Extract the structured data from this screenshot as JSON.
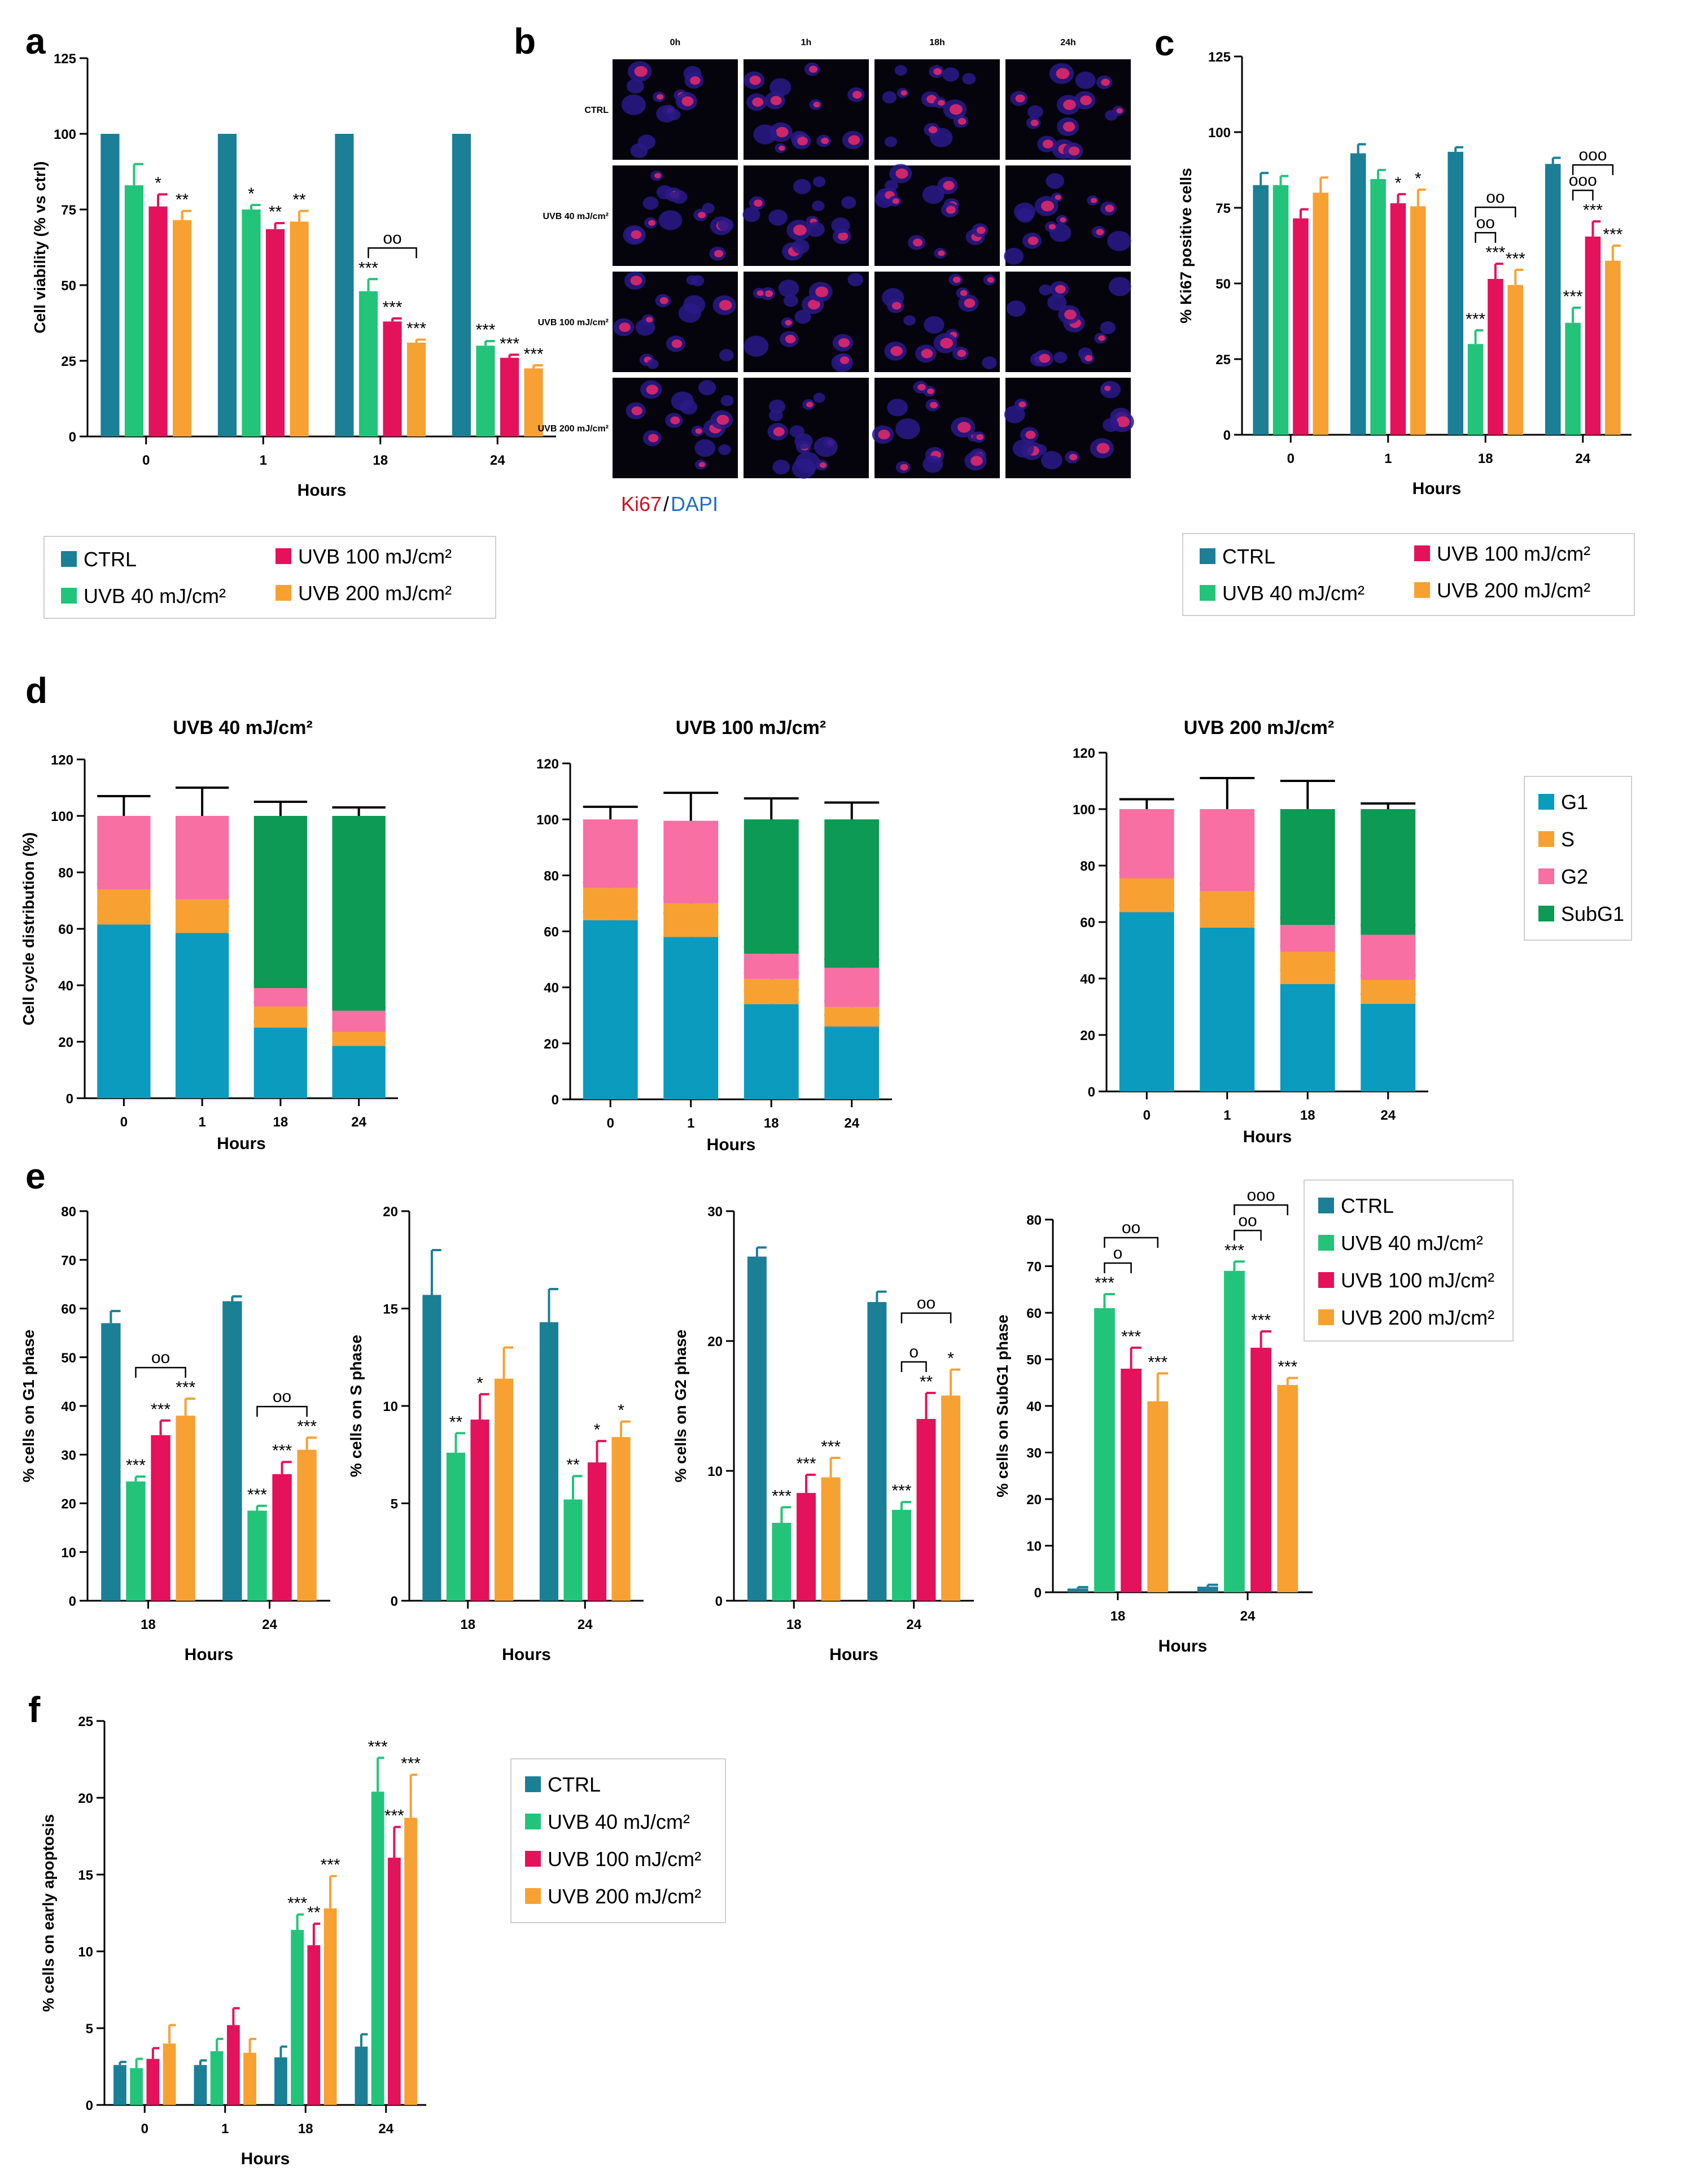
{
  "colors": {
    "ctrl": "#1b7f96",
    "uvb40": "#22c47a",
    "uvb100": "#e3125a",
    "uvb200": "#f7a133",
    "g1": "#0a9bbf",
    "s": "#f7a133",
    "g2": "#f76fa3",
    "subg1": "#0c9a54"
  },
  "legend_treatment": [
    "CTRL",
    "UVB 40 mJ/cm²",
    "UVB 100 mJ/cm²",
    "UVB 200 mJ/cm²"
  ],
  "legend_cycle": [
    "G1",
    "S",
    "G2",
    "SubG1"
  ],
  "panel_b": {
    "letter": "b",
    "columns": [
      "0h",
      "1h",
      "18h",
      "24h"
    ],
    "rows": [
      "CTRL",
      "UVB 40 mJ/cm²",
      "UVB 100 mJ/cm²",
      "UVB 200 mJ/cm²"
    ],
    "stain_ki67": "Ki67",
    "stain_sep": "/",
    "stain_dapi": "DAPI"
  },
  "chart_data": [
    {
      "id": "a",
      "letter": "a",
      "type": "bar",
      "title": "",
      "xlabel": "Hours",
      "ylabel": "Cell viability (% vs ctrl)",
      "categories": [
        "0",
        "1",
        "18",
        "24"
      ],
      "ylim": [
        0,
        125
      ],
      "yticks": [
        0,
        25,
        50,
        75,
        100,
        125
      ],
      "series": [
        {
          "name": "CTRL",
          "values": [
            100,
            100,
            100,
            100
          ],
          "err": [
            0,
            0,
            0,
            0
          ],
          "sig": [
            "",
            "",
            "",
            ""
          ]
        },
        {
          "name": "UVB 40 mJ/cm²",
          "values": [
            83,
            75,
            48,
            30
          ],
          "err": [
            7,
            1.5,
            4,
            1.5
          ],
          "sig": [
            "",
            "*",
            "***",
            "***"
          ]
        },
        {
          "name": "UVB 100 mJ/cm²",
          "values": [
            76,
            68.5,
            38,
            26
          ],
          "err": [
            4,
            2,
            1,
            1
          ],
          "sig": [
            "*",
            "**",
            "***",
            "***"
          ]
        },
        {
          "name": "UVB 200 mJ/cm²",
          "values": [
            71.5,
            71,
            31,
            22.5
          ],
          "err": [
            3,
            3.5,
            1,
            1
          ],
          "sig": [
            "**",
            "**",
            "***",
            "***"
          ]
        }
      ],
      "brackets": [
        {
          "cat": 2,
          "from": 1,
          "to": 3,
          "label": "οο"
        }
      ]
    },
    {
      "id": "c",
      "letter": "c",
      "type": "bar",
      "title": "",
      "xlabel": "Hours",
      "ylabel": "% Ki67 positive cells",
      "categories": [
        "0",
        "1",
        "18",
        "24"
      ],
      "ylim": [
        0,
        125
      ],
      "yticks": [
        0,
        25,
        50,
        75,
        100,
        125
      ],
      "series": [
        {
          "name": "CTRL",
          "values": [
            82.5,
            93,
            93.5,
            89.5
          ],
          "err": [
            4,
            3,
            1.5,
            2
          ],
          "sig": [
            "",
            "",
            "",
            ""
          ]
        },
        {
          "name": "UVB 40 mJ/cm²",
          "values": [
            82.5,
            84.5,
            30,
            37
          ],
          "err": [
            3,
            3,
            4.5,
            5
          ],
          "sig": [
            "",
            "",
            "***",
            "***"
          ]
        },
        {
          "name": "UVB 100 mJ/cm²",
          "values": [
            71.5,
            76.5,
            51.5,
            65.5
          ],
          "err": [
            3,
            3,
            5,
            5
          ],
          "sig": [
            "",
            "*",
            "***",
            "***"
          ]
        },
        {
          "name": "UVB 200 mJ/cm²",
          "values": [
            80,
            75.5,
            49.5,
            57.5
          ],
          "err": [
            5,
            5.5,
            5,
            5
          ],
          "sig": [
            "",
            "*",
            "***",
            "***"
          ]
        }
      ],
      "brackets": [
        {
          "cat": 2,
          "from": 1,
          "to": 2,
          "label": "οο",
          "level": 0
        },
        {
          "cat": 2,
          "from": 1,
          "to": 3,
          "label": "οο",
          "level": 1
        },
        {
          "cat": 3,
          "from": 1,
          "to": 2,
          "label": "οοο",
          "level": 0
        },
        {
          "cat": 3,
          "from": 1,
          "to": 3,
          "label": "οοο",
          "level": 1
        }
      ]
    },
    {
      "id": "d1",
      "letter": "d",
      "type": "bar",
      "stacked": true,
      "title": "UVB 40 mJ/cm²",
      "xlabel": "Hours",
      "ylabel": "Cell cycle distribution (%)",
      "categories": [
        "0",
        "1",
        "18",
        "24"
      ],
      "ylim": [
        0,
        120
      ],
      "yticks": [
        0,
        20,
        40,
        60,
        80,
        100,
        120
      ],
      "series": [
        {
          "name": "G1",
          "values": [
            61.5,
            58.5,
            25,
            18.5
          ],
          "err": [
            6,
            9.5,
            2,
            2.5
          ]
        },
        {
          "name": "S",
          "values": [
            12.5,
            12,
            7.5,
            5
          ],
          "err": [
            2,
            1,
            1.5,
            1.5
          ]
        },
        {
          "name": "G2",
          "values": [
            26,
            29.5,
            6.5,
            7.5
          ],
          "err": [
            7,
            10,
            2,
            1
          ]
        },
        {
          "name": "SubG1",
          "values": [
            0,
            0,
            61,
            69
          ],
          "err": [
            0,
            0,
            5,
            3
          ]
        }
      ]
    },
    {
      "id": "d2",
      "type": "bar",
      "stacked": true,
      "title": "UVB 100 mJ/cm²",
      "xlabel": "Hours",
      "ylabel": "",
      "categories": [
        "0",
        "1",
        "18",
        "24"
      ],
      "ylim": [
        0,
        120
      ],
      "yticks": [
        0,
        20,
        40,
        60,
        80,
        100,
        120
      ],
      "series": [
        {
          "name": "G1",
          "values": [
            64,
            58,
            34,
            26
          ],
          "err": [
            3,
            8.5,
            5,
            4
          ]
        },
        {
          "name": "S",
          "values": [
            11.5,
            12,
            9,
            7
          ],
          "err": [
            2,
            2,
            2,
            2
          ]
        },
        {
          "name": "G2",
          "values": [
            24.5,
            29.5,
            9,
            14
          ],
          "err": [
            4.5,
            10,
            2.5,
            3
          ]
        },
        {
          "name": "SubG1",
          "values": [
            0,
            0,
            48,
            53
          ],
          "err": [
            0,
            0,
            7.5,
            6
          ]
        }
      ]
    },
    {
      "id": "d3",
      "type": "bar",
      "stacked": true,
      "title": "UVB 200 mJ/cm²",
      "xlabel": "Hours",
      "ylabel": "",
      "categories": [
        "0",
        "1",
        "18",
        "24"
      ],
      "ylim": [
        0,
        120
      ],
      "yticks": [
        0,
        20,
        40,
        60,
        80,
        100,
        120
      ],
      "series": [
        {
          "name": "G1",
          "values": [
            63.5,
            58,
            38,
            31
          ],
          "err": [
            2.5,
            10,
            5,
            3.5
          ]
        },
        {
          "name": "S",
          "values": [
            12,
            13,
            11.5,
            8.5
          ],
          "err": [
            2,
            2.5,
            2,
            1.5
          ]
        },
        {
          "name": "G2",
          "values": [
            24.5,
            29,
            9.5,
            16
          ],
          "err": [
            3.5,
            11,
            2.5,
            3.5
          ]
        },
        {
          "name": "SubG1",
          "values": [
            0,
            0,
            41,
            44.5
          ],
          "err": [
            0,
            0,
            10,
            2
          ]
        }
      ]
    },
    {
      "id": "e1",
      "letter": "e",
      "type": "bar",
      "title": "",
      "xlabel": "Hours",
      "ylabel": "% cells on G1 phase",
      "categories": [
        "18",
        "24"
      ],
      "ylim": [
        0,
        80
      ],
      "yticks": [
        0,
        10,
        20,
        30,
        40,
        50,
        60,
        70,
        80
      ],
      "series": [
        {
          "name": "CTRL",
          "values": [
            57,
            61.5
          ],
          "err": [
            2.5,
            1
          ],
          "sig": [
            "",
            ""
          ]
        },
        {
          "name": "UVB 40 mJ/cm²",
          "values": [
            24.5,
            18.5
          ],
          "err": [
            1,
            1
          ],
          "sig": [
            "***",
            "***"
          ]
        },
        {
          "name": "UVB 100 mJ/cm²",
          "values": [
            34,
            26
          ],
          "err": [
            3,
            2.5
          ],
          "sig": [
            "***",
            "***"
          ]
        },
        {
          "name": "UVB 200 mJ/cm²",
          "values": [
            38,
            31
          ],
          "err": [
            3.5,
            2.5
          ],
          "sig": [
            "***",
            "***"
          ]
        }
      ],
      "brackets": [
        {
          "cat": 0,
          "from": 1,
          "to": 3,
          "label": "οο",
          "level": 0
        },
        {
          "cat": 1,
          "from": 1,
          "to": 3,
          "label": "οο",
          "level": 0
        }
      ]
    },
    {
      "id": "e2",
      "type": "bar",
      "title": "",
      "xlabel": "Hours",
      "ylabel": "% cells on S phase",
      "categories": [
        "18",
        "24"
      ],
      "ylim": [
        0,
        20
      ],
      "yticks": [
        0,
        5,
        10,
        15,
        20
      ],
      "series": [
        {
          "name": "CTRL",
          "values": [
            15.7,
            14.3
          ],
          "err": [
            2.3,
            1.7
          ],
          "sig": [
            "",
            ""
          ]
        },
        {
          "name": "UVB 40 mJ/cm²",
          "values": [
            7.6,
            5.2
          ],
          "err": [
            1,
            1.2
          ],
          "sig": [
            "**",
            "**"
          ]
        },
        {
          "name": "UVB 100 mJ/cm²",
          "values": [
            9.3,
            7.1
          ],
          "err": [
            1.3,
            1.1
          ],
          "sig": [
            "*",
            "*"
          ]
        },
        {
          "name": "UVB 200 mJ/cm²",
          "values": [
            11.4,
            8.4
          ],
          "err": [
            1.6,
            0.8
          ],
          "sig": [
            "",
            "*"
          ]
        }
      ],
      "brackets": []
    },
    {
      "id": "e3",
      "type": "bar",
      "title": "",
      "xlabel": "Hours",
      "ylabel": "% cells on G2 phase",
      "categories": [
        "18",
        "24"
      ],
      "ylim": [
        0,
        30
      ],
      "yticks": [
        0,
        10,
        20,
        30
      ],
      "series": [
        {
          "name": "CTRL",
          "values": [
            26.5,
            23
          ],
          "err": [
            0.7,
            0.8
          ],
          "sig": [
            "",
            ""
          ]
        },
        {
          "name": "UVB 40 mJ/cm²",
          "values": [
            6,
            7
          ],
          "err": [
            1.2,
            0.6
          ],
          "sig": [
            "***",
            "***"
          ]
        },
        {
          "name": "UVB 100 mJ/cm²",
          "values": [
            8.3,
            14
          ],
          "err": [
            1.4,
            2
          ],
          "sig": [
            "***",
            "**"
          ]
        },
        {
          "name": "UVB 200 mJ/cm²",
          "values": [
            9.5,
            15.8
          ],
          "err": [
            1.5,
            2
          ],
          "sig": [
            "***",
            "*"
          ]
        }
      ],
      "brackets": [
        {
          "cat": 1,
          "from": 1,
          "to": 2,
          "label": "ο",
          "level": 0
        },
        {
          "cat": 1,
          "from": 1,
          "to": 3,
          "label": "οο",
          "level": 1
        }
      ]
    },
    {
      "id": "e4",
      "type": "bar",
      "title": "",
      "xlabel": "Hours",
      "ylabel": "% cells on SubG1 phase",
      "categories": [
        "18",
        "24"
      ],
      "ylim": [
        0,
        80
      ],
      "yticks": [
        0,
        10,
        20,
        30,
        40,
        50,
        60,
        70,
        80
      ],
      "series": [
        {
          "name": "CTRL",
          "values": [
            0.8,
            1.2
          ],
          "err": [
            0.3,
            0.4
          ],
          "sig": [
            "",
            ""
          ]
        },
        {
          "name": "UVB 40 mJ/cm²",
          "values": [
            61,
            69
          ],
          "err": [
            3,
            2
          ],
          "sig": [
            "***",
            "***"
          ]
        },
        {
          "name": "UVB 100 mJ/cm²",
          "values": [
            48,
            52.5
          ],
          "err": [
            4.5,
            3.5
          ],
          "sig": [
            "***",
            "***"
          ]
        },
        {
          "name": "UVB 200 mJ/cm²",
          "values": [
            41,
            44.5
          ],
          "err": [
            6,
            1.5
          ],
          "sig": [
            "***",
            "***"
          ]
        }
      ],
      "brackets": [
        {
          "cat": 0,
          "from": 1,
          "to": 2,
          "label": "ο",
          "level": 0
        },
        {
          "cat": 0,
          "from": 1,
          "to": 3,
          "label": "οο",
          "level": 1
        },
        {
          "cat": 1,
          "from": 1,
          "to": 2,
          "label": "οο",
          "level": 0
        },
        {
          "cat": 1,
          "from": 1,
          "to": 3,
          "label": "οοο",
          "level": 1
        }
      ]
    },
    {
      "id": "f",
      "letter": "f",
      "type": "bar",
      "title": "",
      "xlabel": "Hours",
      "ylabel": "% cells on early apoptosis",
      "categories": [
        "0",
        "1",
        "18",
        "24"
      ],
      "ylim": [
        0,
        25
      ],
      "yticks": [
        0,
        5,
        10,
        15,
        20,
        25
      ],
      "series": [
        {
          "name": "CTRL",
          "values": [
            2.6,
            2.6,
            3.1,
            3.8
          ],
          "err": [
            0.2,
            0.3,
            0.7,
            0.8
          ],
          "sig": [
            "",
            "",
            "",
            ""
          ]
        },
        {
          "name": "UVB 40 mJ/cm²",
          "values": [
            2.4,
            3.5,
            11.4,
            20.4
          ],
          "err": [
            0.6,
            0.8,
            1,
            2.2
          ],
          "sig": [
            "",
            "",
            "***",
            "***"
          ]
        },
        {
          "name": "UVB 100 mJ/cm²",
          "values": [
            3,
            5.2,
            10.4,
            16.1
          ],
          "err": [
            0.7,
            1.1,
            1.4,
            2
          ],
          "sig": [
            "",
            "",
            "**",
            "***"
          ]
        },
        {
          "name": "UVB 200 mJ/cm²",
          "values": [
            4,
            3.4,
            12.8,
            18.7
          ],
          "err": [
            1.2,
            0.9,
            2.1,
            2.8
          ],
          "sig": [
            "",
            "",
            "***",
            "***"
          ]
        }
      ],
      "brackets": []
    }
  ]
}
